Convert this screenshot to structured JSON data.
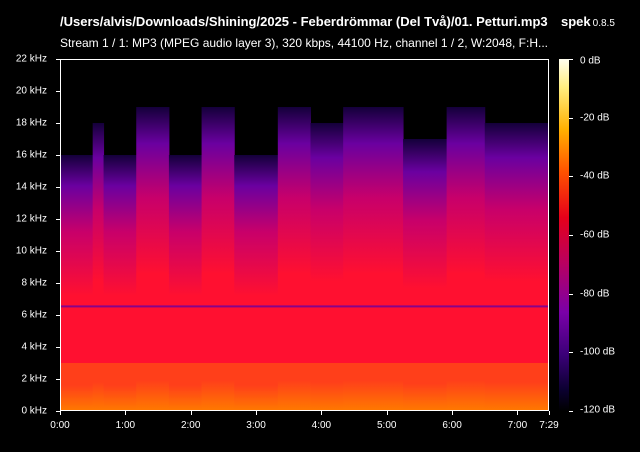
{
  "header": {
    "file_title": "/Users/alvis/Downloads/Shining/2025 - Feberdrömmar (Del Två)/01. Petturi.mp3",
    "app_name": "spek",
    "app_version": "0.8.5",
    "stream_info": "Stream 1 / 1: MP3 (MPEG audio layer 3), 320 kbps, 44100 Hz, channel 1 / 2, W:2048, F:H..."
  },
  "y_axis": {
    "ticks": [
      {
        "label": "22 kHz",
        "value": 22
      },
      {
        "label": "20 kHz",
        "value": 20
      },
      {
        "label": "18 kHz",
        "value": 18
      },
      {
        "label": "16 kHz",
        "value": 16
      },
      {
        "label": "14 kHz",
        "value": 14
      },
      {
        "label": "12 kHz",
        "value": 12
      },
      {
        "label": "10 kHz",
        "value": 10
      },
      {
        "label": "8 kHz",
        "value": 8
      },
      {
        "label": "6 kHz",
        "value": 6
      },
      {
        "label": "4 kHz",
        "value": 4
      },
      {
        "label": "2 kHz",
        "value": 2
      },
      {
        "label": "0 kHz",
        "value": 0
      }
    ],
    "range_khz": [
      0,
      22
    ]
  },
  "x_axis": {
    "ticks": [
      {
        "label": "0:00",
        "seconds": 0
      },
      {
        "label": "1:00",
        "seconds": 60
      },
      {
        "label": "2:00",
        "seconds": 120
      },
      {
        "label": "3:00",
        "seconds": 180
      },
      {
        "label": "4:00",
        "seconds": 240
      },
      {
        "label": "5:00",
        "seconds": 300
      },
      {
        "label": "6:00",
        "seconds": 360
      },
      {
        "label": "7:00",
        "seconds": 420
      },
      {
        "label": "7:29",
        "seconds": 449
      }
    ],
    "duration_seconds": 449
  },
  "colorbar": {
    "ticks": [
      {
        "label": "0 dB",
        "value": 0
      },
      {
        "label": "-20 dB",
        "value": -20
      },
      {
        "label": "-40 dB",
        "value": -40
      },
      {
        "label": "-60 dB",
        "value": -60
      },
      {
        "label": "-80 dB",
        "value": -80
      },
      {
        "label": "-100 dB",
        "value": -100
      },
      {
        "label": "-120 dB",
        "value": -120
      }
    ],
    "range_db": [
      -120,
      0
    ]
  },
  "spectrogram": {
    "cutoff_khz_by_time": [
      {
        "from": 0,
        "to": 30,
        "khz": 16
      },
      {
        "from": 30,
        "to": 40,
        "khz": 18
      },
      {
        "from": 40,
        "to": 70,
        "khz": 16
      },
      {
        "from": 70,
        "to": 100,
        "khz": 19
      },
      {
        "from": 100,
        "to": 130,
        "khz": 16
      },
      {
        "from": 130,
        "to": 160,
        "khz": 19
      },
      {
        "from": 160,
        "to": 200,
        "khz": 16
      },
      {
        "from": 200,
        "to": 230,
        "khz": 19
      },
      {
        "from": 230,
        "to": 260,
        "khz": 18
      },
      {
        "from": 260,
        "to": 315,
        "khz": 19
      },
      {
        "from": 315,
        "to": 355,
        "khz": 17
      },
      {
        "from": 355,
        "to": 390,
        "khz": 19
      },
      {
        "from": 390,
        "to": 449,
        "khz": 18
      }
    ],
    "colors": {
      "hot": "#ff7a00",
      "red": "#ff1030",
      "magenta": "#c8006a",
      "purple": "#6a00a0",
      "dark": "#14003a"
    }
  }
}
